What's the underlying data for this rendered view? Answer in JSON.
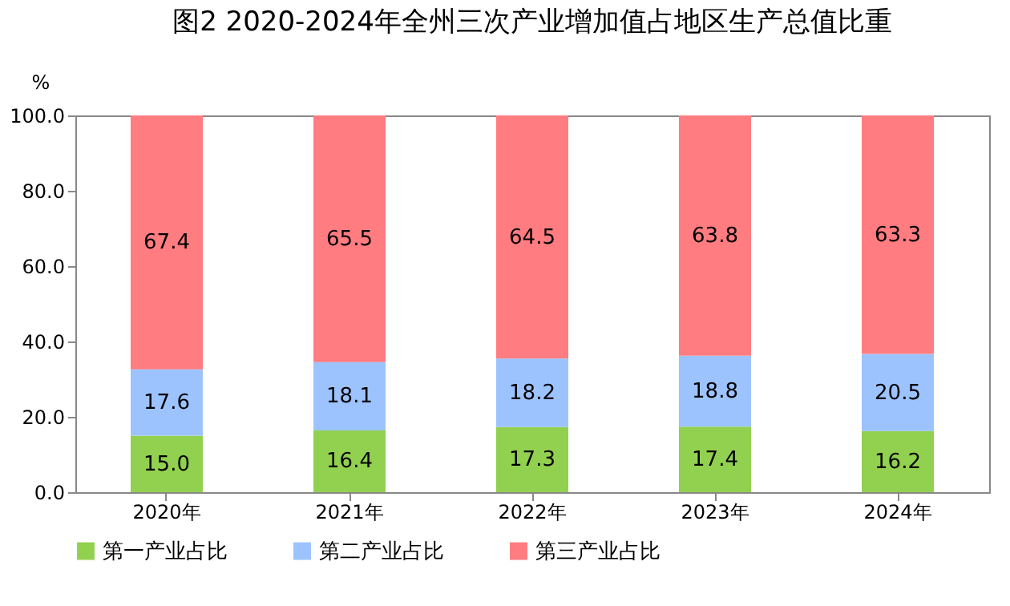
{
  "chart_data": {
    "type": "bar",
    "stacked": true,
    "title": "图2 2020-2024年全州三次产业增加值占地区生产总值比重",
    "ylabel": "%",
    "categories": [
      "2020年",
      "2021年",
      "2022年",
      "2023年",
      "2024年"
    ],
    "series": [
      {
        "name": "第一产业占比",
        "color": "#92d050",
        "values": [
          15.0,
          16.4,
          17.3,
          17.4,
          16.2
        ],
        "value_labels": [
          "15.0",
          "16.4",
          "17.3",
          "17.4",
          "16.2"
        ]
      },
      {
        "name": "第二产业占比",
        "color": "#9dc3ff",
        "values": [
          17.6,
          18.1,
          18.2,
          18.8,
          20.5
        ],
        "value_labels": [
          "17.6",
          "18.1",
          "18.2",
          "18.8",
          "20.5"
        ]
      },
      {
        "name": "第三产业占比",
        "color": "#ff7c80",
        "values": [
          67.4,
          65.5,
          64.5,
          63.8,
          63.3
        ],
        "value_labels": [
          "67.4",
          "65.5",
          "64.5",
          "63.8",
          "63.3"
        ]
      }
    ],
    "ylim": [
      0,
      100
    ],
    "yticks": [
      {
        "value": 0,
        "label": "0.0"
      },
      {
        "value": 20,
        "label": "20.0"
      },
      {
        "value": 40,
        "label": "40.0"
      },
      {
        "value": 60,
        "label": "60.0"
      },
      {
        "value": 80,
        "label": "80.0"
      },
      {
        "value": 100,
        "label": "100.0"
      }
    ],
    "grid": false,
    "legend": "bottom"
  }
}
